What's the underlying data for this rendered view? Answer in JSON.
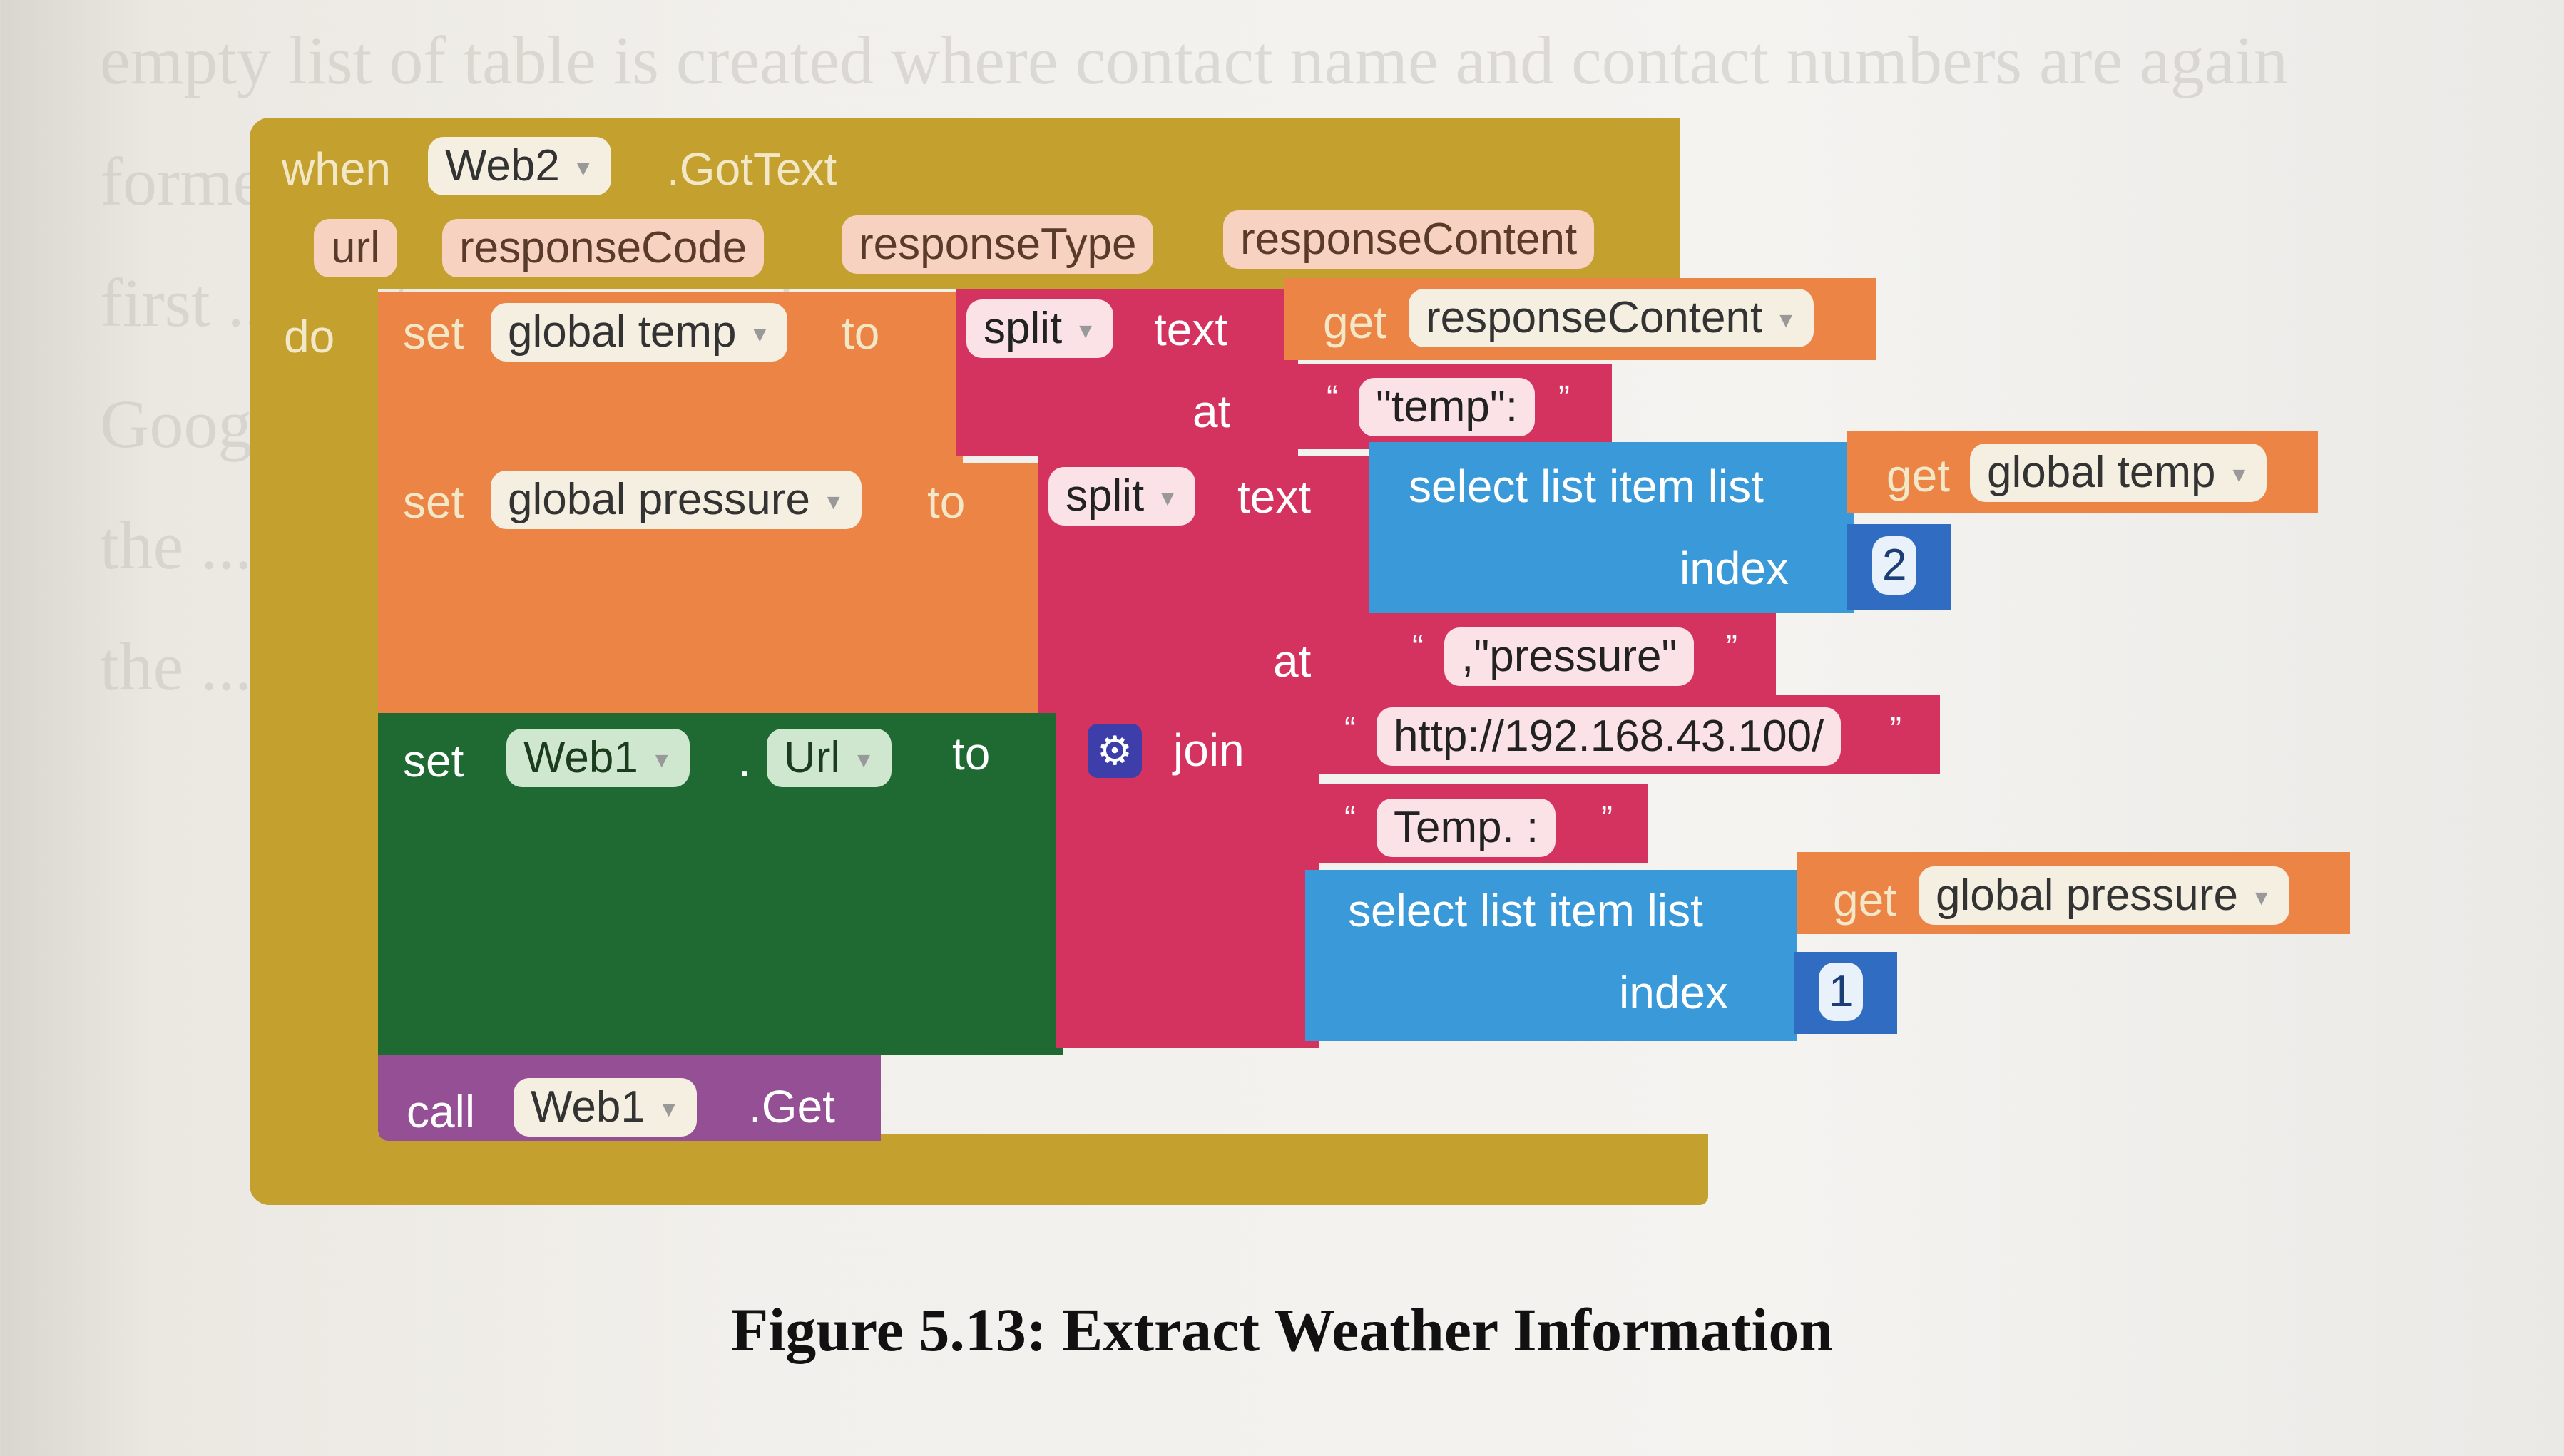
{
  "background_text": [
    "empty list of table is created where contact name and contact numbers are again",
    "formed ... created previously is cleared,",
    "first ... to store names online on the",
    "Google ... is second subpart of this is",
    "the ... stored on",
    "the ... sheet"
  ],
  "event": {
    "when_label": "when",
    "component": "Web2",
    "event_name": ".GotText",
    "params": [
      "url",
      "responseCode",
      "responseType",
      "responseContent"
    ],
    "do_label": "do"
  },
  "stmt1": {
    "set_label": "set",
    "var": "global temp",
    "to_label": "to",
    "split_label": "split",
    "text_label": "text",
    "get_label": "get",
    "get_var": "responseContent",
    "at_label": "at",
    "at_value": "\"temp\":"
  },
  "stmt2": {
    "set_label": "set",
    "var": "global pressure",
    "to_label": "to",
    "split_label": "split",
    "text_label": "text",
    "select_label": "select list item  list",
    "get_label": "get",
    "get_var": "global temp",
    "index_label": "index",
    "index_value": "2",
    "at_label": "at",
    "at_value": ",\"pressure\""
  },
  "stmt3": {
    "set_label": "set",
    "component": "Web1",
    "dot": ".",
    "property": "Url",
    "to_label": "to",
    "join_label": "join",
    "str1": "http://192.168.43.100/",
    "str2": "Temp. :",
    "select_label": "select list item  list",
    "get_label": "get",
    "get_var": "global pressure",
    "index_label": "index",
    "index_value": "1"
  },
  "stmt4": {
    "call_label": "call",
    "component": "Web1",
    "method": ".Get"
  },
  "caption": "Figure 5.13: Extract Weather Information",
  "colors": {
    "event": "#c4a12f",
    "variable": "#ec8446",
    "text": "#d4335f",
    "list": "#3a9ad9",
    "math": "#2f6cc2",
    "component": "#1f6a32",
    "call": "#954f95"
  }
}
